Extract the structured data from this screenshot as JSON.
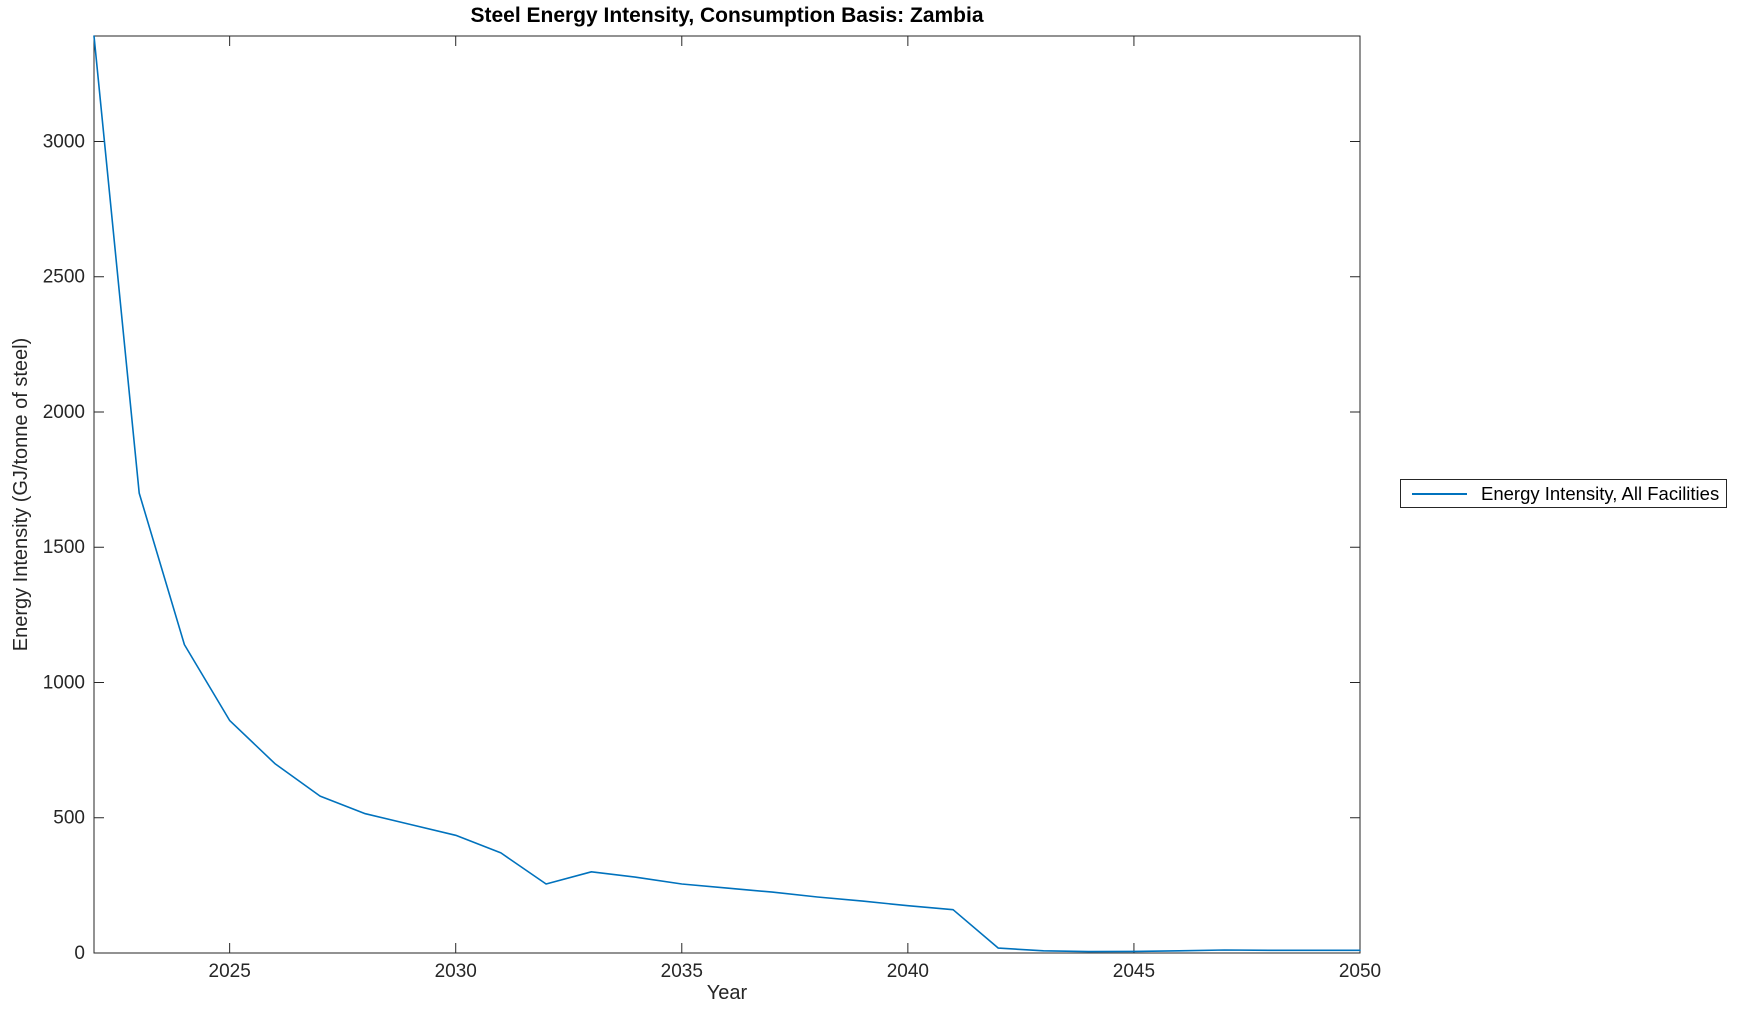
{
  "figure": {
    "background": "#ffffff"
  },
  "colors": {
    "line": "#0072BD",
    "axis": "#262626",
    "tick_label": "#262626",
    "title": "#000000",
    "legend_border": "#262626",
    "legend_background": "#ffffff"
  },
  "chart_data": {
    "type": "line",
    "title": "Steel Energy Intensity, Consumption Basis: Zambia",
    "xlabel": "Year",
    "ylabel": "Energy Intensity (GJ/tonne of steel)",
    "xlim": [
      2022,
      2050
    ],
    "ylim": [
      0,
      3390
    ],
    "xticks": [
      2025,
      2030,
      2035,
      2040,
      2045,
      2050
    ],
    "yticks": [
      0,
      500,
      1000,
      1500,
      2000,
      2500,
      3000
    ],
    "grid": false,
    "legend": {
      "position": "outside-right",
      "entries": [
        {
          "label": "Energy Intensity, All Facilities",
          "color": "#0072BD"
        }
      ]
    },
    "series": [
      {
        "name": "Energy Intensity, All Facilities",
        "color": "#0072BD",
        "x": [
          2022,
          2023,
          2024,
          2025,
          2026,
          2027,
          2028,
          2029,
          2030,
          2031,
          2032,
          2033,
          2034,
          2035,
          2036,
          2037,
          2038,
          2039,
          2040,
          2041,
          2042,
          2043,
          2044,
          2045,
          2046,
          2047,
          2048,
          2049,
          2050
        ],
        "y": [
          3390,
          1700,
          1140,
          860,
          700,
          580,
          515,
          475,
          435,
          370,
          255,
          300,
          280,
          255,
          240,
          225,
          207,
          192,
          175,
          160,
          18,
          8,
          5,
          6,
          8,
          11,
          10,
          10,
          10
        ]
      }
    ]
  }
}
